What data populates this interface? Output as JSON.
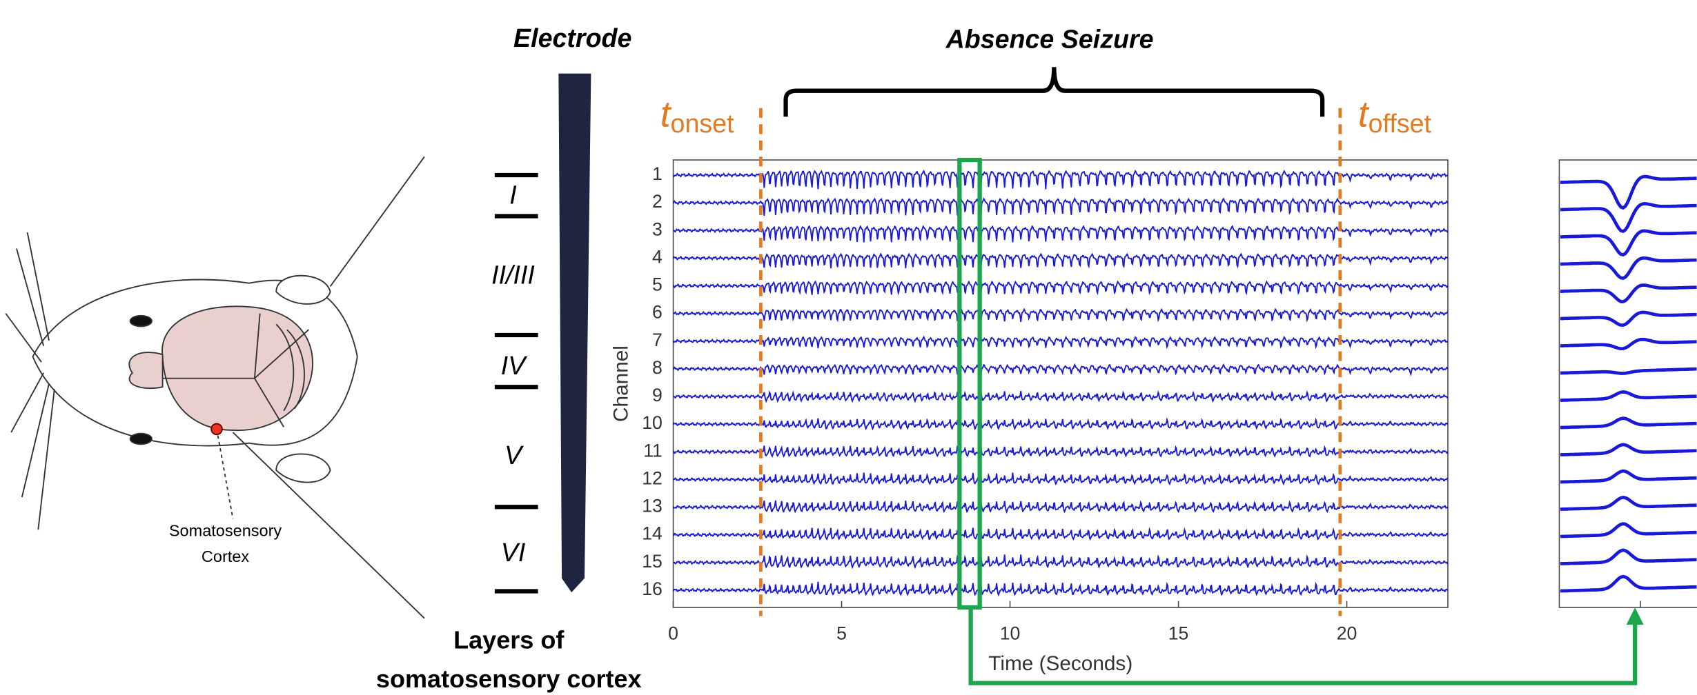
{
  "mouse": {
    "label_line1": "Somatosensory",
    "label_line2": "Cortex"
  },
  "electrode": {
    "title": "Electrode",
    "layers": [
      "I",
      "II/III",
      "IV",
      "V",
      "VI"
    ],
    "caption_line1": "Layers of",
    "caption_line2": "somatosensory cortex"
  },
  "seizure": {
    "title": "Absence Seizure",
    "onset": {
      "symbol": "t",
      "subscript": "onset",
      "time": 2.6
    },
    "offset": {
      "symbol": "t",
      "subscript": "offset",
      "time": 19.8
    },
    "highlight": [
      8.5,
      9.1
    ]
  },
  "plot": {
    "ylabel": "Channel",
    "xlabel": "Time (Seconds)",
    "channels": [
      1,
      2,
      3,
      4,
      5,
      6,
      7,
      8,
      9,
      10,
      11,
      12,
      13,
      14,
      15,
      16
    ],
    "xlim": [
      0,
      23
    ],
    "xticks": [
      0,
      5,
      10,
      15,
      20
    ]
  }
}
